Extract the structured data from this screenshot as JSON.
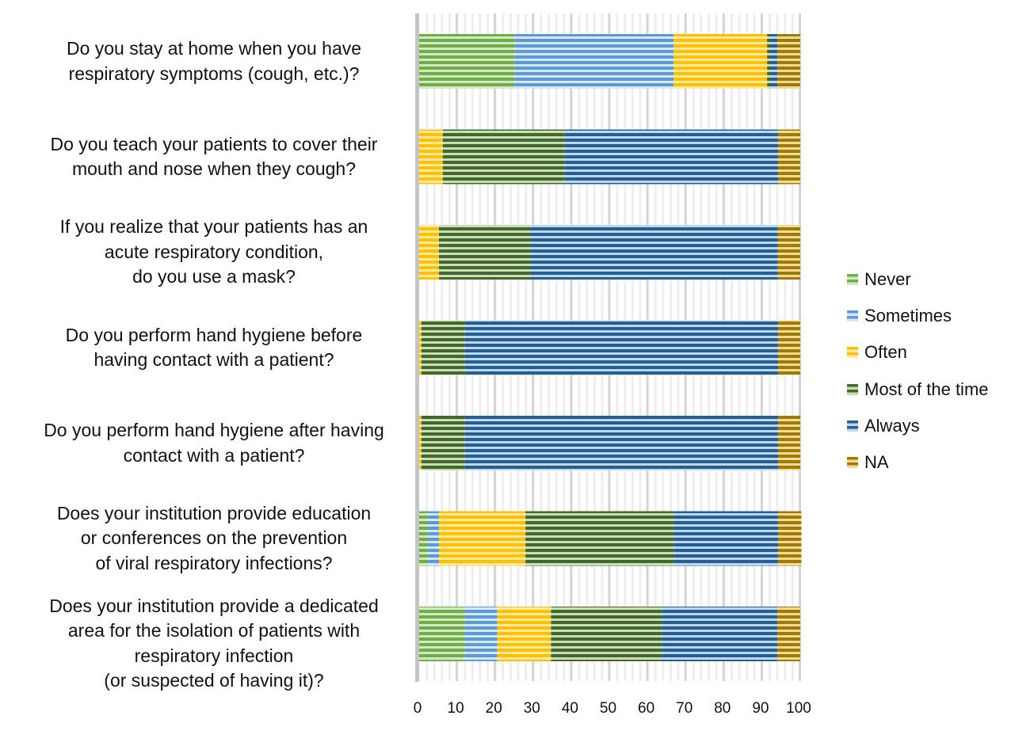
{
  "chart_data": {
    "type": "bar",
    "orientation": "horizontal",
    "stacked": true,
    "title": "",
    "xlabel": "",
    "ylabel": "",
    "xlim": [
      0,
      100
    ],
    "xticks": [
      0,
      10,
      20,
      30,
      40,
      50,
      60,
      70,
      80,
      90,
      100
    ],
    "grid": true,
    "legend_position": "right",
    "categories": [
      "Do you stay at home when you have\nrespiratory symptoms (cough, etc.)?",
      "Do you teach your patients to cover their\nmouth and nose when they cough?",
      "If you realize that your patients has an\nacute respiratory condition,\ndo you use a mask?",
      "Do you perform hand hygiene before\nhaving contact with a patient?",
      "Do you perform hand hygiene after having\ncontact with a patient?",
      "Does your institution provide education\nor conferences on the prevention\nof viral respiratory infections?",
      "Does your institution provide a dedicated\narea for the isolation of patients with\nrespiratory infection\n(or suspected of having it)?"
    ],
    "series": [
      {
        "name": "Never",
        "color": "#70AD47",
        "light": "#D3E8C4",
        "values": [
          25.0,
          0,
          0,
          0,
          0,
          2.3,
          12.0
        ]
      },
      {
        "name": "Sometimes",
        "color": "#5B9BD5",
        "light": "#D6E6F5",
        "values": [
          41.8,
          0,
          0,
          0,
          0,
          2.9,
          8.5
        ]
      },
      {
        "name": "Often",
        "color": "#FFC000",
        "light": "#FFE9A6",
        "values": [
          24.5,
          6.2,
          5.2,
          0.6,
          0.6,
          22.7,
          14.1
        ]
      },
      {
        "name": "Most of the time",
        "color": "#43682B",
        "light": "#C9DDB8",
        "values": [
          1.0,
          32.0,
          24.0,
          11.4,
          11.4,
          38.9,
          29.1
        ]
      },
      {
        "name": "Always",
        "color": "#255E91",
        "light": "#BDD7EE",
        "values": [
          1.7,
          56.0,
          64.9,
          82.2,
          82.2,
          27.4,
          30.3
        ]
      },
      {
        "name": "NA",
        "color": "#9E7A0A",
        "light": "#F2DC94",
        "values": [
          6.0,
          5.8,
          5.9,
          5.8,
          5.8,
          6.1,
          6.0
        ]
      }
    ]
  }
}
